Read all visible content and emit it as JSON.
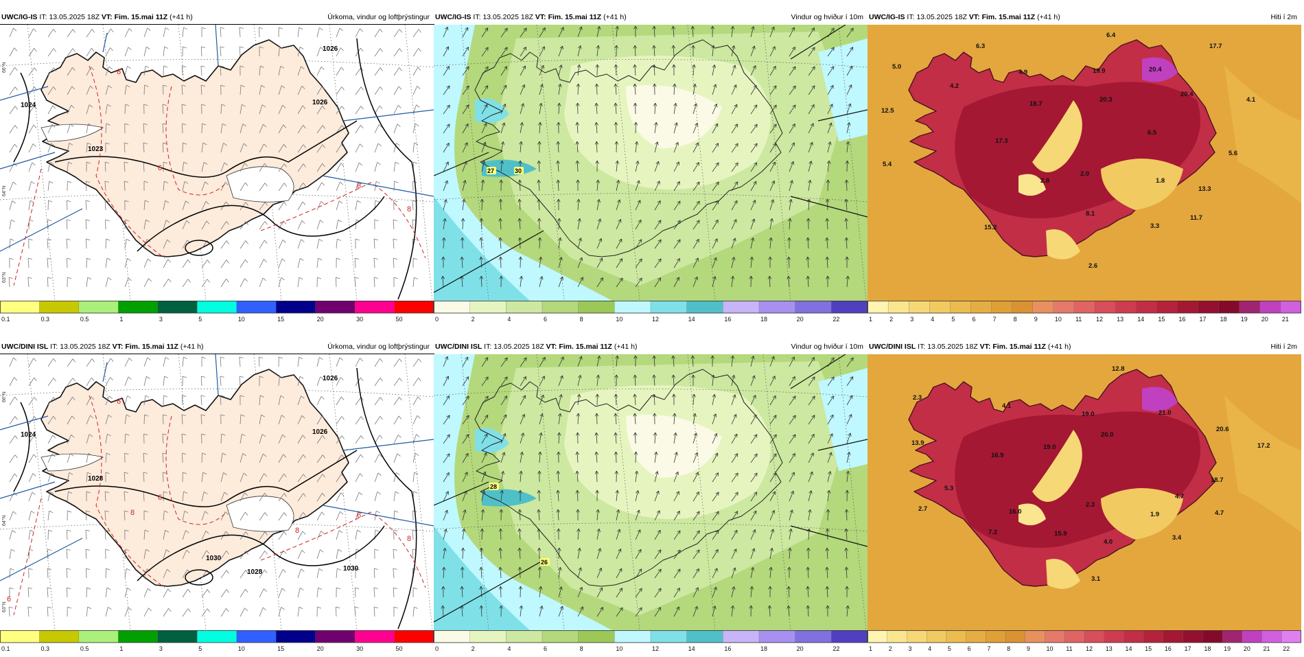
{
  "panels": [
    {
      "id": "p1",
      "model": "UWC/IG-IS",
      "it_label": "IT:",
      "it": "13.05.2025 18Z",
      "vt_label": "VT:",
      "vt": "Fim. 15.mai 11Z",
      "lead": "(+41 h)",
      "field": "Úrkoma, vindur og loftþrýstingur",
      "type": "precip",
      "isobars": [
        "1026",
        "1024",
        "1026",
        "1023"
      ],
      "temps_red": [
        "6",
        "6",
        "8",
        "8"
      ],
      "lat_labels": [
        "66°N",
        "64°N",
        "63°N"
      ],
      "colorbar": {
        "labels": [
          "0.1",
          "0.3",
          "0.5",
          "1",
          "3",
          "5",
          "10",
          "15",
          "20",
          "30",
          "50"
        ],
        "colors": [
          "#ffff80",
          "#c8c800",
          "#aaf07a",
          "#00a000",
          "#006040",
          "#00ffe0",
          "#3060ff",
          "#00008c",
          "#700070",
          "#ff0090",
          "#ff0000"
        ]
      }
    },
    {
      "id": "p2",
      "model": "UWC/IG-IS",
      "it_label": "IT:",
      "it": "13.05.2025 18Z",
      "vt_label": "VT:",
      "vt": "Fim. 15.mai 11Z",
      "lead": "(+41 h)",
      "field": "Vindur og hviður í 10m",
      "type": "wind",
      "gust_labels": [
        "27",
        "30"
      ],
      "colorbar": {
        "labels": [
          "0",
          "2",
          "4",
          "6",
          "8",
          "10",
          "12",
          "14",
          "16",
          "18",
          "20",
          "22"
        ],
        "colors": [
          "#fafae6",
          "#e6f5c0",
          "#cde8a0",
          "#b4d87c",
          "#9cc858",
          "#bff8ff",
          "#80e0e8",
          "#50c0c8",
          "#c8b4f8",
          "#a890f0",
          "#8070e0",
          "#5040c0"
        ]
      }
    },
    {
      "id": "p3",
      "model": "UWC/IG-IS",
      "it_label": "IT:",
      "it": "13.05.2025 18Z",
      "vt_label": "VT:",
      "vt": "Fim. 15.mai 11Z",
      "lead": "(+41 h)",
      "field": "Hiti í 2m",
      "type": "temp",
      "temp_labels": [
        "6.4",
        "6.3",
        "5.0",
        "4.9",
        "4.2",
        "12.5",
        "19.9",
        "18.7",
        "20.4",
        "20.4",
        "17.7",
        "4.1",
        "20.3",
        "6.5",
        "17.3",
        "5.4",
        "5.6",
        "2.8",
        "2.0",
        "1.8",
        "13.3",
        "15.2",
        "8.1",
        "3.3",
        "11.7",
        "2.6"
      ],
      "colorbar": {
        "labels": [
          "1",
          "2",
          "3",
          "4",
          "5",
          "6",
          "7",
          "8",
          "9",
          "10",
          "11",
          "12",
          "13",
          "14",
          "15",
          "16",
          "17",
          "18",
          "19",
          "20",
          "21"
        ],
        "colors": [
          "#fff4b0",
          "#fbe690",
          "#f6d876",
          "#f1ca62",
          "#ecbc50",
          "#e6ae42",
          "#e0a038",
          "#da9232",
          "#e89060",
          "#e57a6a",
          "#e06464",
          "#d84e5a",
          "#ce3c50",
          "#c22e46",
          "#b4223c",
          "#a41834",
          "#941030",
          "#840a2c",
          "#a02470",
          "#c040c0",
          "#d060e0"
        ]
      }
    },
    {
      "id": "p4",
      "model": "UWC/DINI ISL",
      "it_label": "IT:",
      "it": "13.05.2025 18Z",
      "vt_label": "VT:",
      "vt": "Fim. 15.mai 11Z",
      "lead": "(+41 h)",
      "field": "Úrkoma, vindur og loftþrýstingur",
      "type": "precip",
      "isobars": [
        "1026",
        "1024",
        "1026",
        "1028",
        "1030",
        "1028",
        "1030"
      ],
      "temps_red": [
        "6",
        "6",
        "6",
        "8",
        "8",
        "8",
        "6"
      ],
      "lat_labels": [
        "66°N",
        "64°N",
        "63°N"
      ],
      "colorbar": {
        "labels": [
          "0.1",
          "0.3",
          "0.5",
          "1",
          "3",
          "5",
          "10",
          "15",
          "20",
          "30",
          "50"
        ],
        "colors": [
          "#ffff80",
          "#c8c800",
          "#aaf07a",
          "#00a000",
          "#006040",
          "#00ffe0",
          "#3060ff",
          "#00008c",
          "#700070",
          "#ff0090",
          "#ff0000"
        ]
      }
    },
    {
      "id": "p5",
      "model": "UWC/DINI ISL",
      "it_label": "IT:",
      "it": "13.05.2025 18Z",
      "vt_label": "VT:",
      "vt": "Fim. 15.mai 11Z",
      "lead": "(+41 h)",
      "field": "Vindur og hviður í 10m",
      "type": "wind",
      "gust_labels": [
        "28",
        "26"
      ],
      "colorbar": {
        "labels": [
          "0",
          "2",
          "4",
          "6",
          "8",
          "10",
          "12",
          "14",
          "16",
          "18",
          "20",
          "22"
        ],
        "colors": [
          "#fafae6",
          "#e6f5c0",
          "#cde8a0",
          "#b4d87c",
          "#9cc858",
          "#bff8ff",
          "#80e0e8",
          "#50c0c8",
          "#c8b4f8",
          "#a890f0",
          "#8070e0",
          "#5040c0"
        ]
      }
    },
    {
      "id": "p6",
      "model": "UWC/DINI ISL",
      "it_label": "IT:",
      "it": "13.05.2025 18Z",
      "vt_label": "VT:",
      "vt": "Fim. 15.mai 11Z",
      "lead": "(+41 h)",
      "field": "Hiti í 2m",
      "type": "temp",
      "temp_labels": [
        "12.8",
        "2.3",
        "4.1",
        "19.0",
        "21.0",
        "13.9",
        "20.0",
        "20.6",
        "17.2",
        "16.9",
        "19.0",
        "18.7",
        "5.3",
        "2.7",
        "16.0",
        "2.3",
        "4.7",
        "1.9",
        "4.7",
        "7.2",
        "15.9",
        "4.0",
        "3.4",
        "3.1"
      ],
      "colorbar": {
        "labels": [
          "1",
          "2",
          "3",
          "4",
          "5",
          "6",
          "7",
          "8",
          "9",
          "10",
          "11",
          "12",
          "13",
          "14",
          "15",
          "16",
          "17",
          "18",
          "19",
          "20",
          "21",
          "22"
        ],
        "colors": [
          "#fff4b0",
          "#fbe690",
          "#f6d876",
          "#f1ca62",
          "#ecbc50",
          "#e6ae42",
          "#e0a038",
          "#da9232",
          "#e89060",
          "#e57a6a",
          "#e06464",
          "#d84e5a",
          "#ce3c50",
          "#c22e46",
          "#b4223c",
          "#a41834",
          "#941030",
          "#840a2c",
          "#a02470",
          "#c040c0",
          "#d060e0",
          "#e080f0"
        ]
      }
    }
  ]
}
